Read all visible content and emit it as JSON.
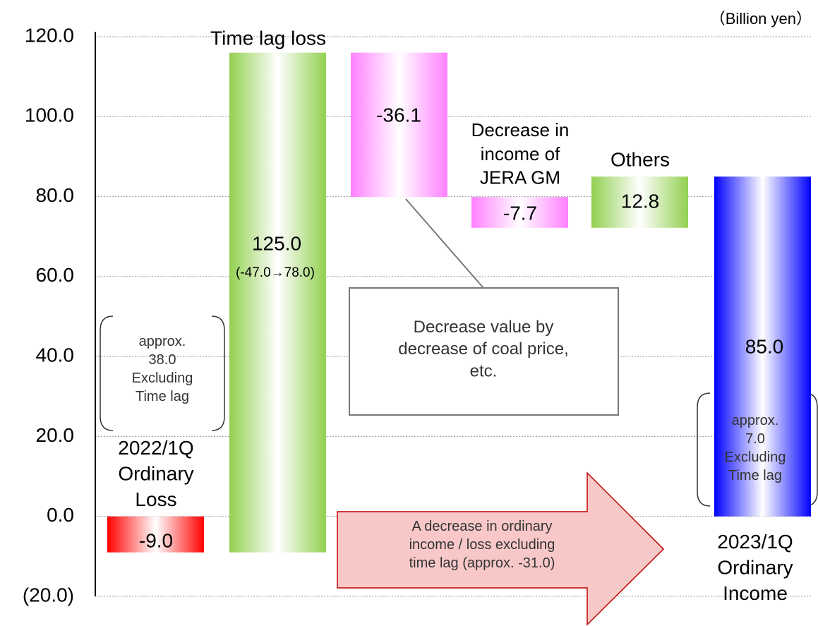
{
  "chart_data": {
    "type": "waterfall",
    "unit": "（Billion yen）",
    "categories": [
      "2022/1Q\nOrdinary\nLoss",
      "Time lag loss",
      null,
      "Decrease in\nincome of\nJERA GM",
      "Others",
      "2023/1Q\nOrdinary\nIncome"
    ],
    "values": [
      -9.0,
      125.0,
      -36.1,
      -7.7,
      12.8,
      85.0
    ],
    "value_labels": [
      "-9.0",
      "125.0",
      "-36.1",
      "-7.7",
      "12.8",
      "85.0"
    ],
    "colors": [
      "#ff0000",
      "#92d050",
      "#ff80ff",
      "#ff80ff",
      "#92d050",
      "#0000ff"
    ],
    "ylim": [
      -20,
      120
    ],
    "yticks": [
      {
        "value": -20,
        "label": "(20.0)"
      },
      {
        "value": 0,
        "label": "0.0"
      },
      {
        "value": 20,
        "label": "20.0"
      },
      {
        "value": 40,
        "label": "40.0"
      },
      {
        "value": 60,
        "label": "60.0"
      },
      {
        "value": 80,
        "label": "80.0"
      },
      {
        "value": 100,
        "label": "100.0"
      },
      {
        "value": 120,
        "label": "120.0"
      }
    ],
    "grid": true,
    "annotations": [
      "(-47.0→78.0)",
      "approx.\n38.0\nExcluding\nTime lag",
      "approx.\n7.0\nExcluding\nTime lag",
      "Decrease value by\ndecrease of coal price,\netc.",
      "A decrease in ordinary\nincome / loss excluding\ntime lag (approx. -31.0)"
    ]
  }
}
